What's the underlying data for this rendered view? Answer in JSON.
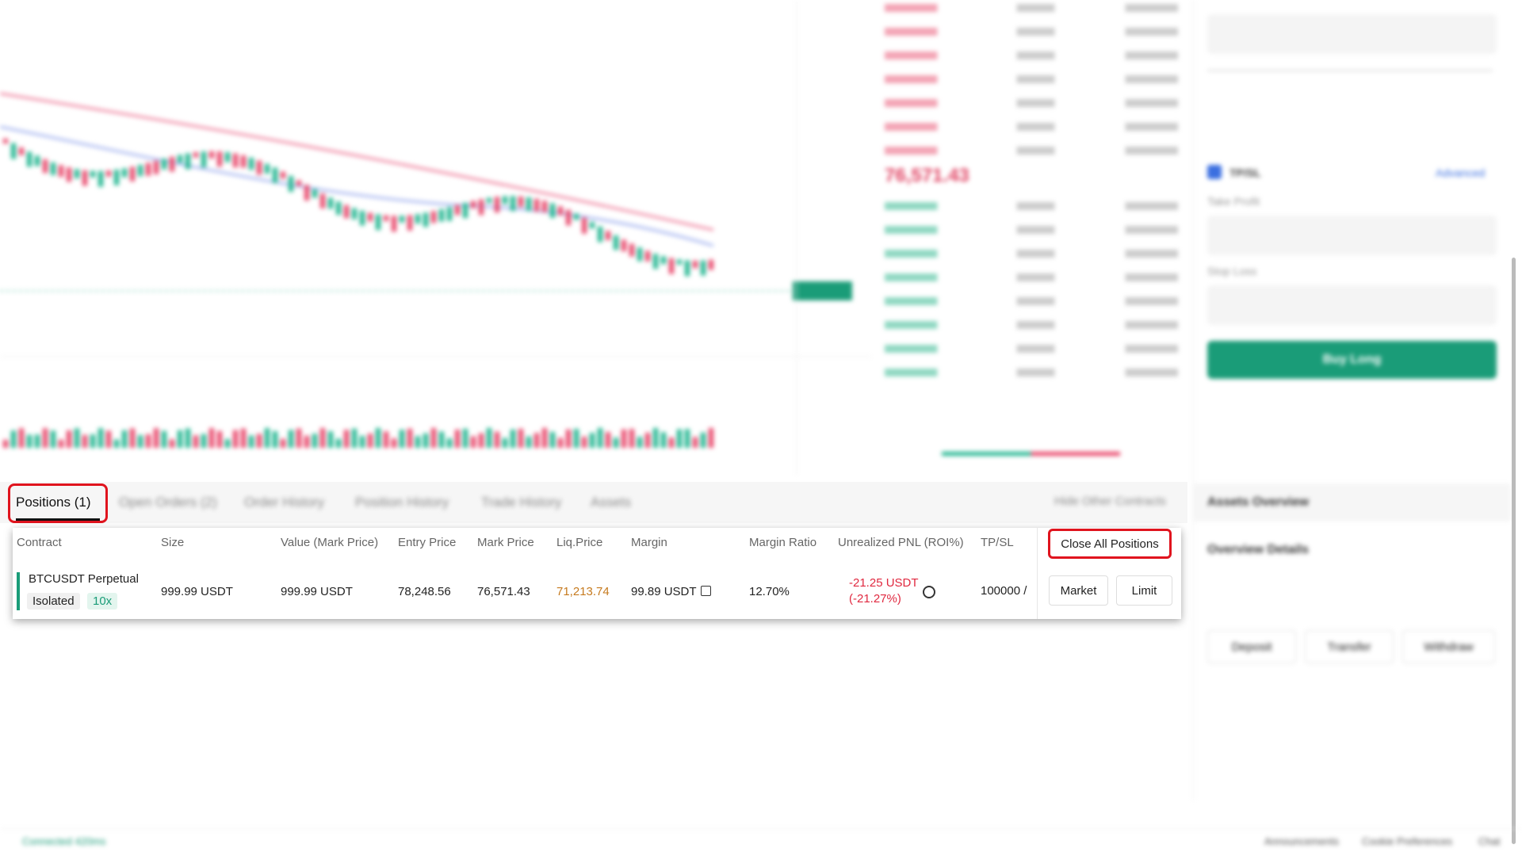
{
  "tabs": [
    "Positions (1)",
    "Open Orders (2)",
    "Order History",
    "Position History",
    "Trade History",
    "Assets"
  ],
  "hide_other": "Hide Other Contracts",
  "table": {
    "columns": [
      "Contract",
      "Size",
      "Value (Mark Price)",
      "Entry Price",
      "Mark Price",
      "Liq.Price",
      "Margin",
      "Margin Ratio",
      "Unrealized PNL (ROI%)",
      "TP/SL"
    ],
    "close_all": "Close All Positions",
    "rows": [
      {
        "contract": "BTCUSDT Perpetual",
        "margin_mode": "Isolated",
        "leverage": "10x",
        "size": "999.99 USDT",
        "value": "999.99 USDT",
        "entry_price": "78,248.56",
        "mark_price": "76,571.43",
        "liq_price": "71,213.74",
        "margin": "99.89 USDT",
        "margin_ratio": "12.70%",
        "pnl": "-21.25 USDT",
        "roi": "(-21.27%)",
        "tpsl": "100000 /",
        "actions": [
          "Market",
          "Limit"
        ]
      }
    ]
  },
  "order_book": {
    "last_price": "76,571.43"
  },
  "order_panel": {
    "tpsl": "TP/SL",
    "advanced": "Advanced",
    "take_profit": "Take Profit",
    "stop_loss": "Stop Loss",
    "buy": "Buy Long",
    "assets_overview": "Assets Overview",
    "overview_details": "Overview Details",
    "buttons": [
      "Deposit",
      "Transfer",
      "Withdraw"
    ]
  },
  "footer": {
    "status": "Connected 420ms",
    "links": [
      "Announcements",
      "Cookie Preferences",
      "Chat"
    ]
  }
}
